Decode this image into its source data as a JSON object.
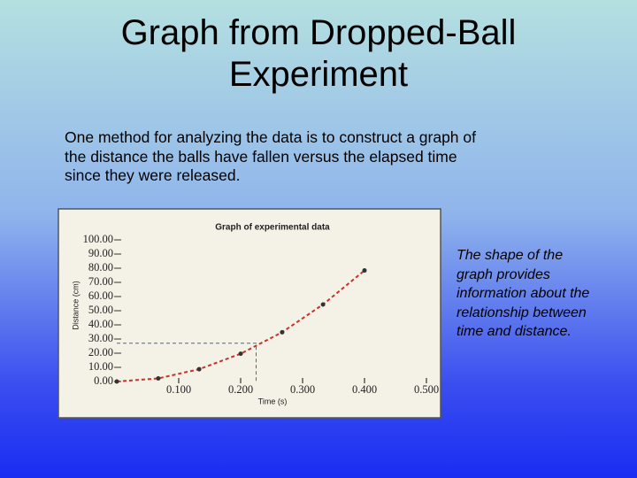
{
  "slide": {
    "title": "Graph from Dropped-Ball Experiment",
    "body": "One method for analyzing the data is to construct a graph of the distance the balls have fallen versus the elapsed time since they were released.",
    "side_note": "The shape of the graph provides information about the relationship between time and distance."
  },
  "chart_data": {
    "type": "scatter",
    "title": "Graph of experimental data",
    "x_label": "Time (s)",
    "y_label": "Distance (cm)",
    "x": [
      0,
      0.067,
      0.133,
      0.2,
      0.267,
      0.333,
      0.4
    ],
    "values": [
      0,
      2.2,
      8.7,
      19.6,
      34.8,
      54.4,
      78.4
    ],
    "color": "#c8322a",
    "point_color": "#333333",
    "xlim": [
      0,
      0.5
    ],
    "ylim": [
      0,
      100
    ],
    "xticks": [
      {
        "value": 0.1,
        "label": "0.100"
      },
      {
        "value": 0.2,
        "label": "0.200"
      },
      {
        "value": 0.3,
        "label": "0.300"
      },
      {
        "value": 0.4,
        "label": "0.400"
      },
      {
        "value": 0.5,
        "label": "0.500"
      }
    ],
    "yticks": [
      {
        "value": 0,
        "label": "0.00"
      },
      {
        "value": 10,
        "label": "10.00"
      },
      {
        "value": 20,
        "label": "20.00"
      },
      {
        "value": 30,
        "label": "30.00"
      },
      {
        "value": 40,
        "label": "40.00"
      },
      {
        "value": 50,
        "label": "50.00"
      },
      {
        "value": 60,
        "label": "60.00"
      },
      {
        "value": 70,
        "label": "70.00"
      },
      {
        "value": 80,
        "label": "80.00"
      },
      {
        "value": 90,
        "label": "90.00"
      },
      {
        "value": 100,
        "label": "100.00"
      }
    ],
    "reference_point": {
      "x": 0.225,
      "y": 27,
      "color": "#3a6ea5"
    }
  }
}
